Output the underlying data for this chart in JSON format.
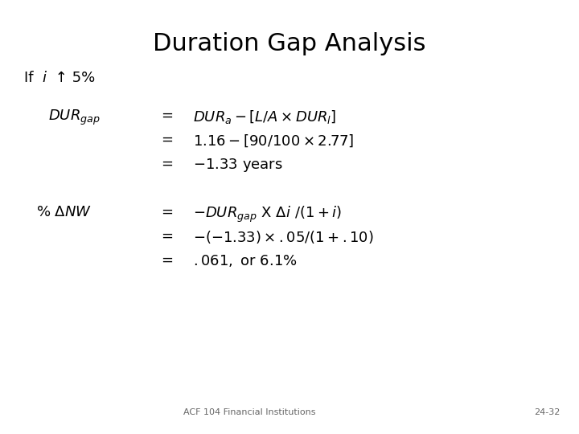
{
  "title": "Duration Gap Analysis",
  "title_fontsize": 22,
  "title_fontweight": "normal",
  "bg_color": "#ffffff",
  "text_color": "#000000",
  "footer_left": "ACF 104 Financial Institutions",
  "footer_right": "24-32",
  "footer_fontsize": 8,
  "main_fontsize": 13,
  "label_fontsize": 12
}
